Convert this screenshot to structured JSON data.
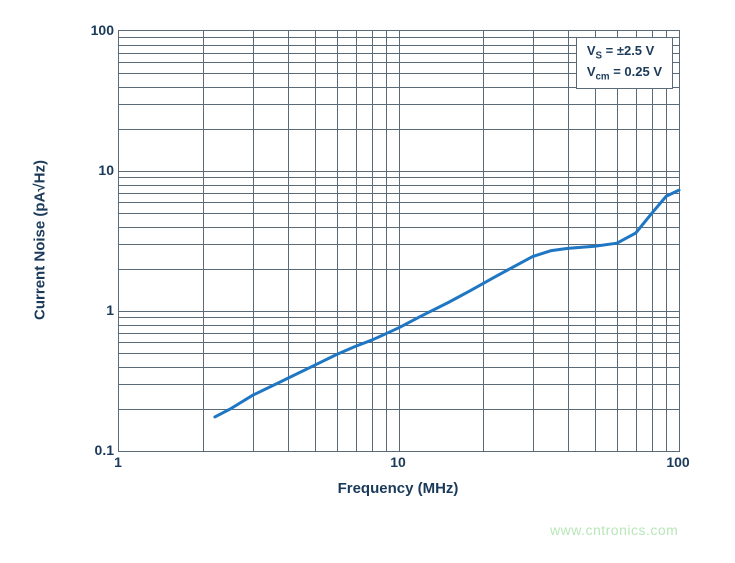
{
  "chart": {
    "type": "line",
    "background_color": "#ffffff",
    "grid_color": "#5a6a78",
    "border_color": "#5a6a78",
    "line_color": "#1f77c4",
    "line_width": 3,
    "text_color": "#1b3a5a",
    "axis_title_fontsize": 15,
    "tick_fontsize": 14,
    "legend_fontsize": 13,
    "x": {
      "label": "Frequency (MHz)",
      "scale": "log",
      "min": 1,
      "max": 100,
      "ticks": [
        1,
        10,
        100
      ]
    },
    "y": {
      "label": "Current Noise (pA√Hz)",
      "scale": "log",
      "min": 0.1,
      "max": 100,
      "ticks": [
        0.1,
        1,
        10,
        100
      ]
    },
    "points": [
      [
        2.2,
        0.175
      ],
      [
        2.5,
        0.2
      ],
      [
        3.0,
        0.25
      ],
      [
        3.5,
        0.29
      ],
      [
        4.0,
        0.33
      ],
      [
        5.0,
        0.41
      ],
      [
        6.0,
        0.49
      ],
      [
        7.0,
        0.56
      ],
      [
        8.0,
        0.62
      ],
      [
        9.0,
        0.69
      ],
      [
        10.0,
        0.76
      ],
      [
        12.0,
        0.92
      ],
      [
        15.0,
        1.15
      ],
      [
        18.0,
        1.4
      ],
      [
        22.0,
        1.75
      ],
      [
        26.0,
        2.1
      ],
      [
        30.0,
        2.45
      ],
      [
        35.0,
        2.7
      ],
      [
        40.0,
        2.8
      ],
      [
        50.0,
        2.9
      ],
      [
        60.0,
        3.05
      ],
      [
        70.0,
        3.6
      ],
      [
        80.0,
        5.0
      ],
      [
        90.0,
        6.6
      ],
      [
        100.0,
        7.3
      ]
    ],
    "legend": {
      "html": "V<sub>S</sub> = ±2.5 V<br>V<sub>cm</sub> = 0.25 V",
      "line1": "Vs = ±2.5 V",
      "line2": "Vcm = 0.25 V"
    }
  },
  "watermark": "www.cntronics.com",
  "watermark_color": "#b8e6b8"
}
